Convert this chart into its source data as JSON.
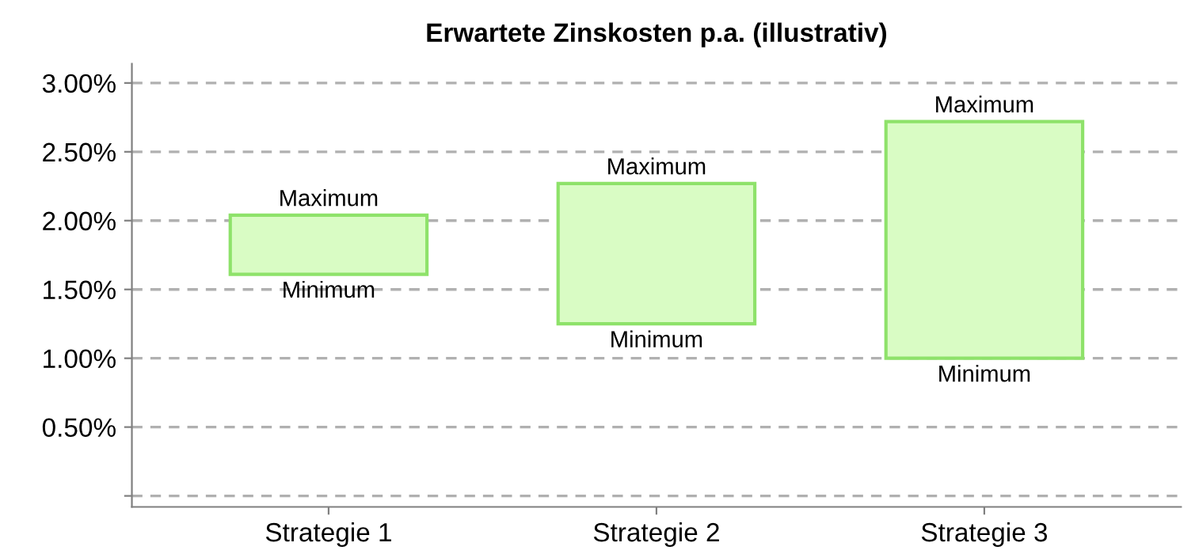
{
  "chart_data": {
    "type": "bar",
    "title": "Erwartete Zinskosten p.a. (illustrativ)",
    "categories": [
      "Strategie 1",
      "Strategie 2",
      "Strategie 3"
    ],
    "base": [
      1.61,
      1.25,
      1.0
    ],
    "values": [
      0.43,
      1.02,
      1.72
    ],
    "color": "#d9fcc4",
    "ylim": [
      -0.08,
      3.14
    ],
    "yticks": [
      {
        "value": 0,
        "label": null
      },
      {
        "value": 0.5,
        "label": "0.50%"
      },
      {
        "value": 1.0,
        "label": "1.00%"
      },
      {
        "value": 1.5,
        "label": "1.50%"
      },
      {
        "value": 2.0,
        "label": "2.00%"
      },
      {
        "value": 2.5,
        "label": "2.50%"
      },
      {
        "value": 3.0,
        "label": "3.00%"
      }
    ],
    "grid": "y",
    "annotations": [
      {
        "text": "Maximum",
        "x": "Strategie 1",
        "y": 2.04
      },
      {
        "text": "Minimum",
        "x": "Strategie 1",
        "y": 1.61
      },
      {
        "text": "Maximum",
        "x": "Strategie 2",
        "y": 2.27
      },
      {
        "text": "Minimum",
        "x": "Strategie 2",
        "y": 1.25
      },
      {
        "text": "Maximum",
        "x": "Strategie 3",
        "y": 2.72
      },
      {
        "text": "Minimum",
        "x": "Strategie 3",
        "y": 1.0
      }
    ]
  }
}
